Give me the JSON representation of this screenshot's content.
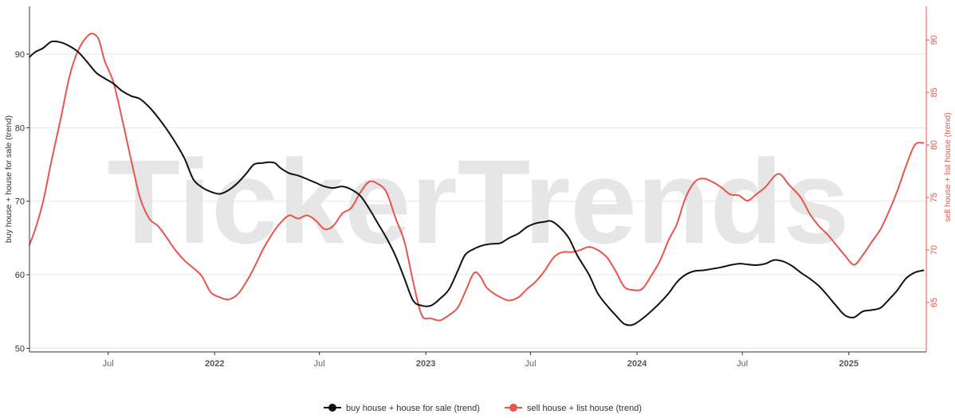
{
  "watermark": "TickerTrends",
  "chart_data": {
    "type": "line",
    "x_ticks": [
      {
        "label": "Jul",
        "date": "2021-07-01",
        "major": false
      },
      {
        "label": "2022",
        "date": "2022-01-01",
        "major": true
      },
      {
        "label": "Jul",
        "date": "2022-07-01",
        "major": false
      },
      {
        "label": "2023",
        "date": "2023-01-01",
        "major": true
      },
      {
        "label": "Jul",
        "date": "2023-07-01",
        "major": false
      },
      {
        "label": "2024",
        "date": "2024-01-01",
        "major": true
      },
      {
        "label": "Jul",
        "date": "2024-07-01",
        "major": false
      },
      {
        "label": "2025",
        "date": "2025-01-01",
        "major": true
      }
    ],
    "xlim": [
      "2021-02-15",
      "2025-05-15"
    ],
    "y_left": {
      "label": "buy house + house for sale  (trend)",
      "ylim": [
        49.5,
        96.5
      ],
      "ticks": [
        50,
        60,
        70,
        80,
        90
      ]
    },
    "y_right": {
      "label": "sell house + list house  (trend)",
      "ylim": [
        60.3,
        93.2
      ],
      "ticks": [
        65,
        70,
        75,
        80,
        85,
        90
      ]
    },
    "grid": true,
    "legend_position": "bottom-center",
    "series": [
      {
        "name": "buy house + house for sale  (trend)",
        "axis": "left",
        "color": "#111111",
        "points": [
          [
            "2021-02-15",
            89.6
          ],
          [
            "2021-02-25",
            90.3
          ],
          [
            "2021-03-10",
            90.8
          ],
          [
            "2021-03-25",
            91.7
          ],
          [
            "2021-04-10",
            91.6
          ],
          [
            "2021-04-25",
            91.1
          ],
          [
            "2021-05-10",
            90.3
          ],
          [
            "2021-05-25",
            89.0
          ],
          [
            "2021-06-10",
            87.5
          ],
          [
            "2021-06-25",
            86.7
          ],
          [
            "2021-07-10",
            86.0
          ],
          [
            "2021-07-25",
            85.0
          ],
          [
            "2021-08-10",
            84.3
          ],
          [
            "2021-08-25",
            83.9
          ],
          [
            "2021-09-10",
            82.8
          ],
          [
            "2021-09-25",
            81.4
          ],
          [
            "2021-10-10",
            79.8
          ],
          [
            "2021-10-25",
            78.0
          ],
          [
            "2021-11-10",
            75.8
          ],
          [
            "2021-11-25",
            73.0
          ],
          [
            "2021-12-10",
            71.9
          ],
          [
            "2021-12-25",
            71.3
          ],
          [
            "2022-01-10",
            71.0
          ],
          [
            "2022-01-25",
            71.5
          ],
          [
            "2022-02-10",
            72.5
          ],
          [
            "2022-02-25",
            73.8
          ],
          [
            "2022-03-10",
            75.0
          ],
          [
            "2022-03-25",
            75.2
          ],
          [
            "2022-04-05",
            75.3
          ],
          [
            "2022-04-15",
            75.2
          ],
          [
            "2022-04-25",
            74.5
          ],
          [
            "2022-05-10",
            73.8
          ],
          [
            "2022-05-25",
            73.5
          ],
          [
            "2022-06-10",
            73.0
          ],
          [
            "2022-06-25",
            72.5
          ],
          [
            "2022-07-10",
            72.0
          ],
          [
            "2022-07-25",
            71.8
          ],
          [
            "2022-08-10",
            72.0
          ],
          [
            "2022-08-25",
            71.6
          ],
          [
            "2022-09-10",
            70.7
          ],
          [
            "2022-09-25",
            69.0
          ],
          [
            "2022-10-10",
            67.0
          ],
          [
            "2022-10-25",
            65.0
          ],
          [
            "2022-11-10",
            62.5
          ],
          [
            "2022-11-25",
            59.5
          ],
          [
            "2022-12-10",
            56.5
          ],
          [
            "2022-12-25",
            55.8
          ],
          [
            "2023-01-10",
            55.8
          ],
          [
            "2023-01-25",
            56.7
          ],
          [
            "2023-02-10",
            58.0
          ],
          [
            "2023-02-25",
            60.5
          ],
          [
            "2023-03-10",
            62.7
          ],
          [
            "2023-03-25",
            63.5
          ],
          [
            "2023-04-10",
            64.0
          ],
          [
            "2023-04-25",
            64.2
          ],
          [
            "2023-05-10",
            64.3
          ],
          [
            "2023-05-25",
            65.0
          ],
          [
            "2023-06-10",
            65.6
          ],
          [
            "2023-06-25",
            66.5
          ],
          [
            "2023-07-10",
            67.0
          ],
          [
            "2023-07-25",
            67.2
          ],
          [
            "2023-08-05",
            67.3
          ],
          [
            "2023-08-20",
            66.5
          ],
          [
            "2023-09-05",
            65.0
          ],
          [
            "2023-09-20",
            62.6
          ],
          [
            "2023-10-10",
            60.0
          ],
          [
            "2023-10-25",
            57.5
          ],
          [
            "2023-11-10",
            55.8
          ],
          [
            "2023-11-25",
            54.5
          ],
          [
            "2023-12-10",
            53.3
          ],
          [
            "2023-12-25",
            53.2
          ],
          [
            "2024-01-10",
            54.0
          ],
          [
            "2024-01-25",
            55.0
          ],
          [
            "2024-02-10",
            56.2
          ],
          [
            "2024-02-25",
            57.5
          ],
          [
            "2024-03-10",
            59.0
          ],
          [
            "2024-03-25",
            60.0
          ],
          [
            "2024-04-10",
            60.5
          ],
          [
            "2024-04-25",
            60.6
          ],
          [
            "2024-05-10",
            60.8
          ],
          [
            "2024-05-25",
            61.0
          ],
          [
            "2024-06-10",
            61.3
          ],
          [
            "2024-06-25",
            61.5
          ],
          [
            "2024-07-10",
            61.4
          ],
          [
            "2024-07-25",
            61.3
          ],
          [
            "2024-08-10",
            61.5
          ],
          [
            "2024-08-25",
            62.0
          ],
          [
            "2024-09-10",
            61.8
          ],
          [
            "2024-09-25",
            61.2
          ],
          [
            "2024-10-10",
            60.3
          ],
          [
            "2024-10-25",
            59.5
          ],
          [
            "2024-11-10",
            58.5
          ],
          [
            "2024-11-25",
            57.2
          ],
          [
            "2024-12-10",
            55.8
          ],
          [
            "2024-12-25",
            54.5
          ],
          [
            "2025-01-10",
            54.2
          ],
          [
            "2025-01-25",
            55.0
          ],
          [
            "2025-02-10",
            55.2
          ],
          [
            "2025-02-25",
            55.5
          ],
          [
            "2025-03-10",
            56.5
          ],
          [
            "2025-03-25",
            57.8
          ],
          [
            "2025-04-10",
            59.5
          ],
          [
            "2025-04-25",
            60.3
          ],
          [
            "2025-05-10",
            60.6
          ]
        ]
      },
      {
        "name": "sell house + list house  (trend)",
        "axis": "right",
        "color": "#e8554a",
        "points": [
          [
            "2021-02-15",
            70.5
          ],
          [
            "2021-02-25",
            72.0
          ],
          [
            "2021-03-10",
            74.5
          ],
          [
            "2021-03-25",
            78.5
          ],
          [
            "2021-04-10",
            82.5
          ],
          [
            "2021-04-25",
            86.5
          ],
          [
            "2021-05-10",
            89.0
          ],
          [
            "2021-05-25",
            90.3
          ],
          [
            "2021-06-05",
            90.6
          ],
          [
            "2021-06-15",
            90.0
          ],
          [
            "2021-06-25",
            88.0
          ],
          [
            "2021-07-10",
            86.0
          ],
          [
            "2021-07-25",
            82.5
          ],
          [
            "2021-08-10",
            78.5
          ],
          [
            "2021-08-25",
            75.0
          ],
          [
            "2021-09-10",
            73.0
          ],
          [
            "2021-09-25",
            72.3
          ],
          [
            "2021-10-10",
            71.2
          ],
          [
            "2021-10-25",
            70.0
          ],
          [
            "2021-11-10",
            69.0
          ],
          [
            "2021-11-25",
            68.3
          ],
          [
            "2021-12-10",
            67.5
          ],
          [
            "2021-12-25",
            66.0
          ],
          [
            "2022-01-10",
            65.5
          ],
          [
            "2022-01-25",
            65.3
          ],
          [
            "2022-02-10",
            65.8
          ],
          [
            "2022-02-25",
            67.0
          ],
          [
            "2022-03-10",
            68.3
          ],
          [
            "2022-03-25",
            70.0
          ],
          [
            "2022-04-10",
            71.5
          ],
          [
            "2022-04-25",
            72.6
          ],
          [
            "2022-05-10",
            73.3
          ],
          [
            "2022-05-25",
            73.0
          ],
          [
            "2022-06-10",
            73.3
          ],
          [
            "2022-06-25",
            72.8
          ],
          [
            "2022-07-10",
            72.0
          ],
          [
            "2022-07-25",
            72.3
          ],
          [
            "2022-08-10",
            73.5
          ],
          [
            "2022-08-25",
            74.0
          ],
          [
            "2022-09-10",
            75.5
          ],
          [
            "2022-09-25",
            76.5
          ],
          [
            "2022-10-10",
            76.3
          ],
          [
            "2022-10-25",
            75.5
          ],
          [
            "2022-11-10",
            73.0
          ],
          [
            "2022-11-25",
            70.8
          ],
          [
            "2022-12-10",
            67.0
          ],
          [
            "2022-12-25",
            63.8
          ],
          [
            "2023-01-10",
            63.5
          ],
          [
            "2023-01-25",
            63.3
          ],
          [
            "2023-02-10",
            63.8
          ],
          [
            "2023-02-25",
            64.5
          ],
          [
            "2023-03-10",
            66.0
          ],
          [
            "2023-03-25",
            67.8
          ],
          [
            "2023-04-05",
            67.5
          ],
          [
            "2023-04-15",
            66.5
          ],
          [
            "2023-04-25",
            66.0
          ],
          [
            "2023-05-10",
            65.5
          ],
          [
            "2023-05-25",
            65.2
          ],
          [
            "2023-06-10",
            65.5
          ],
          [
            "2023-06-25",
            66.3
          ],
          [
            "2023-07-10",
            67.0
          ],
          [
            "2023-07-25",
            68.0
          ],
          [
            "2023-08-10",
            69.3
          ],
          [
            "2023-08-25",
            69.8
          ],
          [
            "2023-09-10",
            69.8
          ],
          [
            "2023-09-25",
            70.0
          ],
          [
            "2023-10-10",
            70.3
          ],
          [
            "2023-10-25",
            70.0
          ],
          [
            "2023-11-10",
            69.3
          ],
          [
            "2023-11-25",
            68.0
          ],
          [
            "2023-12-10",
            66.5
          ],
          [
            "2023-12-25",
            66.2
          ],
          [
            "2024-01-10",
            66.3
          ],
          [
            "2024-01-25",
            67.5
          ],
          [
            "2024-02-10",
            69.0
          ],
          [
            "2024-02-25",
            71.0
          ],
          [
            "2024-03-10",
            72.5
          ],
          [
            "2024-03-25",
            75.0
          ],
          [
            "2024-04-10",
            76.5
          ],
          [
            "2024-04-25",
            76.8
          ],
          [
            "2024-05-10",
            76.5
          ],
          [
            "2024-05-25",
            76.0
          ],
          [
            "2024-06-10",
            75.3
          ],
          [
            "2024-06-25",
            75.2
          ],
          [
            "2024-07-10",
            74.7
          ],
          [
            "2024-07-25",
            75.3
          ],
          [
            "2024-08-10",
            76.0
          ],
          [
            "2024-08-25",
            77.0
          ],
          [
            "2024-09-05",
            77.2
          ],
          [
            "2024-09-20",
            76.2
          ],
          [
            "2024-10-10",
            75.0
          ],
          [
            "2024-10-25",
            73.5
          ],
          [
            "2024-11-10",
            72.3
          ],
          [
            "2024-11-25",
            71.5
          ],
          [
            "2024-12-10",
            70.5
          ],
          [
            "2024-12-25",
            69.5
          ],
          [
            "2025-01-10",
            68.6
          ],
          [
            "2025-01-25",
            69.5
          ],
          [
            "2025-02-10",
            70.8
          ],
          [
            "2025-02-25",
            72.0
          ],
          [
            "2025-03-10",
            73.5
          ],
          [
            "2025-03-25",
            75.5
          ],
          [
            "2025-04-10",
            78.0
          ],
          [
            "2025-04-25",
            80.0
          ],
          [
            "2025-05-10",
            80.2
          ]
        ]
      }
    ]
  }
}
